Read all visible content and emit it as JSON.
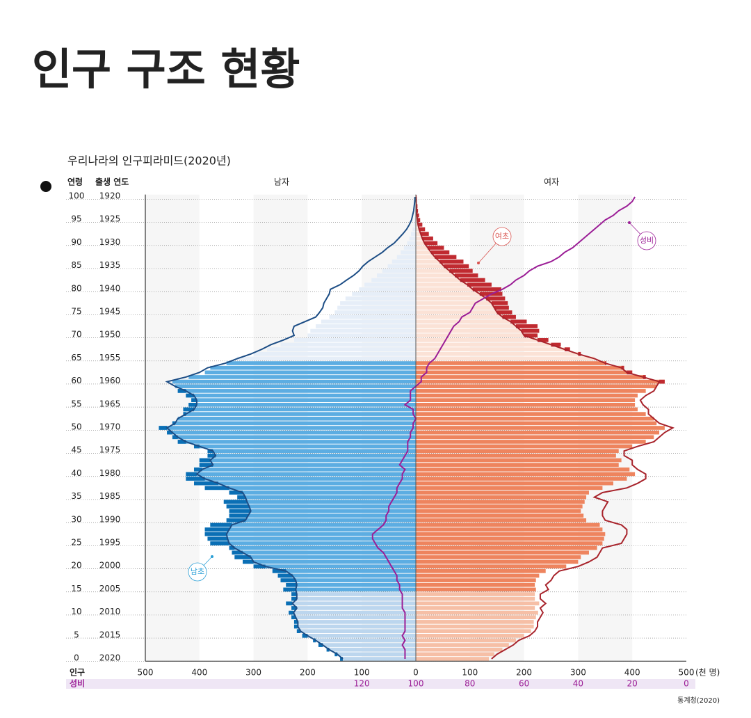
{
  "title": "인구 구조 현황",
  "chart_data": {
    "type": "population_pyramid",
    "title": "우리나라의 인구피라미드(2020년)",
    "age_header": "연령",
    "year_header": "출생 연도",
    "ylim": [
      0,
      100
    ],
    "age_ticks": [
      0,
      5,
      10,
      15,
      20,
      25,
      30,
      35,
      40,
      45,
      50,
      55,
      60,
      65,
      70,
      75,
      80,
      85,
      90,
      95,
      100
    ],
    "birth_years": [
      2020,
      2015,
      2010,
      2005,
      2000,
      1995,
      1990,
      1985,
      1980,
      1975,
      1970,
      1965,
      1960,
      1955,
      1950,
      1945,
      1940,
      1935,
      1930,
      1925,
      1920
    ],
    "xlim": [
      0,
      500
    ],
    "xticks_left": [
      500,
      400,
      300,
      200,
      100
    ],
    "xticks_right": [
      0,
      100,
      200,
      300,
      400,
      500
    ],
    "x_label": "인구",
    "x_unit": "(천 명)",
    "male": {
      "name": "남자",
      "excess_color": "#0a6fb5",
      "line_color": "#1c4d85",
      "values": [
        140,
        150,
        165,
        180,
        190,
        210,
        220,
        225,
        225,
        230,
        235,
        230,
        240,
        230,
        230,
        245,
        240,
        250,
        255,
        265,
        300,
        320,
        335,
        340,
        345,
        380,
        385,
        390,
        390,
        380,
        350,
        345,
        345,
        350,
        355,
        330,
        345,
        390,
        410,
        425,
        425,
        410,
        400,
        400,
        385,
        385,
        410,
        440,
        450,
        460,
        475,
        450,
        440,
        430,
        430,
        420,
        415,
        425,
        440,
        445,
        450,
        420,
        390,
        380,
        350,
        330,
        300,
        275,
        250,
        225,
        200,
        195,
        185,
        175,
        160,
        150,
        145,
        140,
        130,
        118,
        105,
        95,
        82,
        72,
        62,
        52,
        44,
        35,
        28,
        22,
        16,
        12,
        9,
        6,
        4,
        3,
        2,
        1.5,
        1,
        0.6,
        0.5
      ]
    },
    "female": {
      "name": "여자",
      "excess_color": "#c02a30",
      "line_color": "#a8232b",
      "values": [
        135,
        145,
        160,
        172,
        185,
        200,
        213,
        218,
        218,
        222,
        226,
        220,
        228,
        220,
        220,
        222,
        220,
        222,
        228,
        240,
        278,
        300,
        305,
        320,
        335,
        345,
        348,
        350,
        345,
        340,
        315,
        310,
        305,
        308,
        312,
        315,
        320,
        345,
        365,
        390,
        405,
        395,
        375,
        380,
        370,
        375,
        400,
        425,
        440,
        450,
        460,
        445,
        440,
        425,
        410,
        405,
        405,
        410,
        425,
        445,
        460,
        425,
        400,
        385,
        352,
        330,
        305,
        285,
        268,
        245,
        225,
        228,
        225,
        205,
        185,
        178,
        172,
        170,
        165,
        160,
        158,
        140,
        128,
        115,
        105,
        98,
        88,
        75,
        62,
        52,
        40,
        32,
        24,
        17,
        12,
        8,
        6,
        4,
        3,
        2,
        1.5
      ]
    },
    "sex_ratio": {
      "name": "성비",
      "color": "#9b1d96",
      "values": [
        104,
        104,
        104,
        105,
        104,
        105,
        104,
        104,
        104,
        104,
        104,
        105,
        105,
        105,
        105,
        106,
        106,
        107,
        107,
        108,
        109,
        110,
        111,
        112,
        114,
        115,
        116,
        116,
        114,
        112,
        111,
        111,
        110,
        110,
        109,
        108,
        107,
        107,
        106,
        105,
        105,
        104,
        106,
        105,
        104,
        103,
        103,
        103,
        102,
        102,
        101,
        101,
        100,
        101,
        101,
        104,
        102,
        102,
        102,
        100,
        98,
        98,
        96,
        96,
        95,
        93,
        92,
        91,
        90,
        89,
        88,
        87,
        86,
        84,
        83,
        80,
        79,
        78,
        75,
        72,
        68,
        65,
        63,
        60,
        58,
        55,
        50,
        47,
        45,
        42,
        40,
        38,
        36,
        34,
        32,
        30,
        27,
        25,
        22,
        20,
        19
      ]
    },
    "ratio_lim": [
      200,
      0
    ],
    "ratio_ticks": [
      120,
      100,
      80,
      60,
      40,
      20,
      0
    ],
    "ratio_label": "성비",
    "age_groups": [
      {
        "from": 0,
        "to": 14,
        "male_color": "#bcd6ee",
        "female_color": "#f6bfa6"
      },
      {
        "from": 15,
        "to": 64,
        "male_color": "#5cade2",
        "female_color": "#ee845e"
      },
      {
        "from": 65,
        "to": 100,
        "male_color": "#e6eef8",
        "female_color": "#fbe2d6"
      }
    ],
    "annotations": [
      "남초",
      "여초"
    ],
    "source": "통계청(2020)"
  }
}
